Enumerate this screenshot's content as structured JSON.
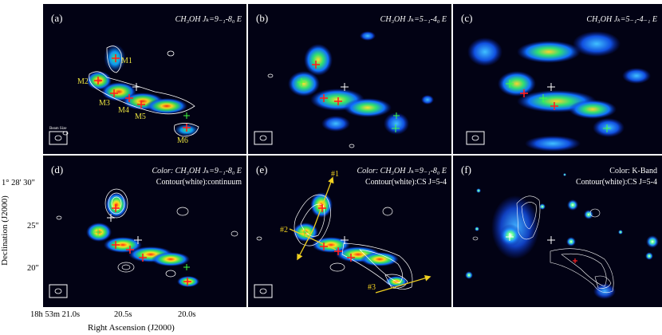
{
  "panels": [
    {
      "letter": "(a)",
      "label": "CH₃OH Jₖ=9₋₁-8₀ E"
    },
    {
      "letter": "(b)",
      "label": "CH₃OH Jₖ=5₋₁-4₀ E"
    },
    {
      "letter": "(c)",
      "label": "CH₃OH Jₖ=5₋₁-4₋₁ E"
    },
    {
      "letter": "(d)",
      "label": "Color: CH₃OH Jₖ=9₋₁-8₀ E",
      "label2": "Contour(white):continuum"
    },
    {
      "letter": "(e)",
      "label": "Color: CH₃OH Jₖ=9₋₁-8₀ E",
      "label2": "Contour(white):CS J=5-4"
    },
    {
      "letter": "(f)",
      "label": "Color: K-Band",
      "label2": "Contour(white):CS J=5-4"
    }
  ],
  "cores": [
    "M1",
    "M2",
    "M3",
    "M4",
    "M5",
    "M6"
  ],
  "beam_label": "Beam Size",
  "outflow_labels": [
    "#1",
    "#2",
    "#3"
  ],
  "axes": {
    "ylabel": "Declination (J2000)",
    "xlabel": "Right Ascension (J2000)",
    "y_ticks": [
      "1° 28' 30\"",
      "25\"",
      "20\""
    ],
    "x_ticks": [
      "18h 53m 21.0s",
      "20.5s",
      "20.0s"
    ]
  },
  "colors": {
    "background": "#020214",
    "marker_red": "#ff2020",
    "marker_green": "#40ff40",
    "label_yellow": "#e8e040",
    "arrow": "#f0d020"
  }
}
